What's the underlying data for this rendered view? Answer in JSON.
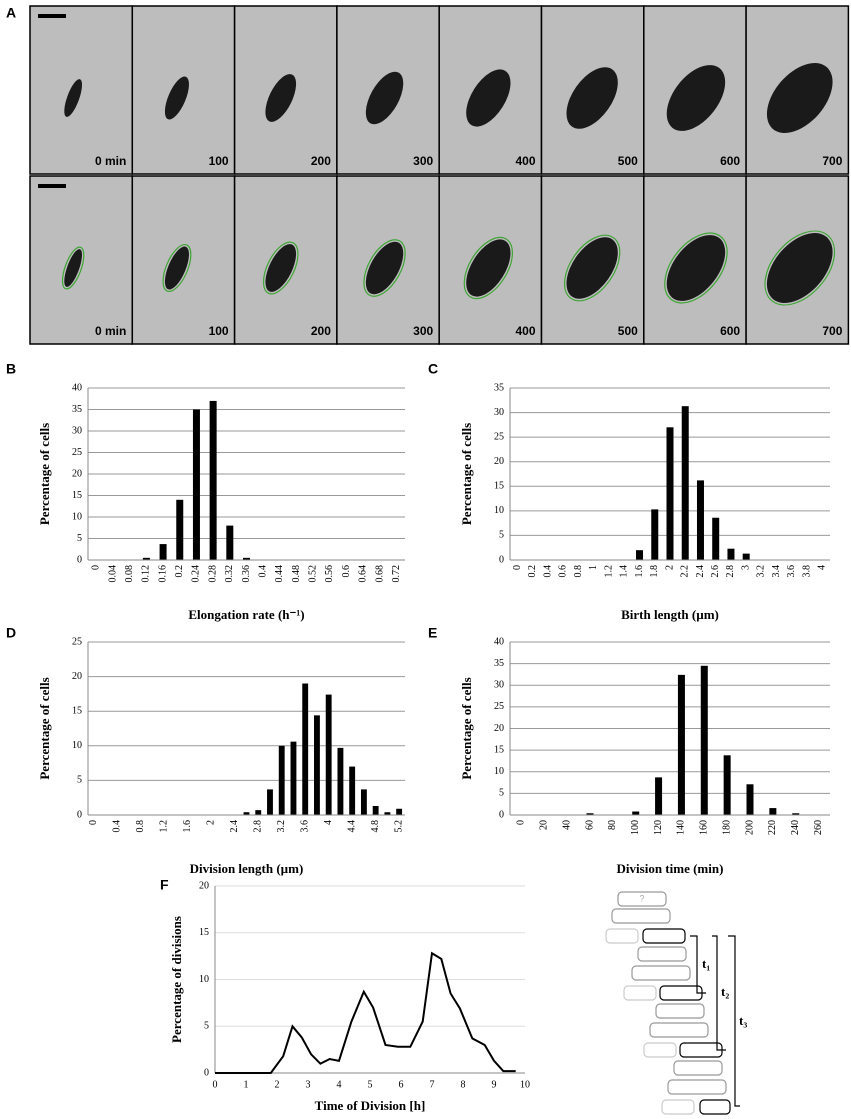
{
  "panel_a": {
    "label": "A",
    "rows": [
      {
        "time_labels": [
          "0 min",
          "100",
          "200",
          "300",
          "400",
          "500",
          "600",
          "700"
        ]
      },
      {
        "time_labels": [
          "0 min",
          "100",
          "200",
          "300",
          "400",
          "500",
          "600",
          "700"
        ]
      }
    ]
  },
  "diagram": {
    "labels": [
      "?",
      "t₁",
      "t₂",
      "t₃"
    ]
  },
  "chart_data": [
    {
      "type": "bar",
      "panel": "B",
      "x_label": "Elongation rate (h⁻¹)",
      "y_label": "Percentage of cells",
      "categories": [
        "0",
        "0.04",
        "0.08",
        "0.12",
        "0.16",
        "0.2",
        "0.24",
        "0.28",
        "0.32",
        "0.36",
        "0.4",
        "0.44",
        "0.48",
        "0.52",
        "0.56",
        "0.6",
        "0.64",
        "0.68",
        "0.72"
      ],
      "values": [
        0,
        0,
        0,
        0.5,
        3.7,
        14,
        35,
        37,
        8,
        0.5,
        0,
        0.1,
        0,
        0,
        0,
        0,
        0.1,
        0,
        0
      ],
      "color": "#000000",
      "ylim": [
        0,
        40
      ],
      "yticks": [
        0,
        5,
        10,
        15,
        20,
        25,
        30,
        35,
        40
      ],
      "grid": true
    },
    {
      "type": "bar",
      "panel": "C",
      "x_label": "Birth length (µm)",
      "y_label": "Percentage of cells",
      "categories": [
        "0",
        "0.2",
        "0.4",
        "0.6",
        "0.8",
        "1",
        "1.2",
        "1.4",
        "1.6",
        "1.8",
        "2",
        "2.2",
        "2.4",
        "2.6",
        "2.8",
        "3",
        "3.2",
        "3.4",
        "3.6",
        "3.8",
        "4"
      ],
      "values": [
        0,
        0,
        0,
        0,
        0,
        0,
        0,
        0,
        2,
        10.3,
        27,
        31.3,
        16.2,
        8.6,
        2.3,
        1.3,
        0,
        0,
        0,
        0,
        0
      ],
      "color": "#000000",
      "ylim": [
        0,
        35
      ],
      "yticks": [
        0,
        5,
        10,
        15,
        20,
        25,
        30,
        35
      ],
      "grid": true
    },
    {
      "type": "bar",
      "panel": "D",
      "x_label": "Division length (µm)",
      "y_label": "Percentage of cells",
      "categories": [
        "0",
        null,
        "0.4",
        null,
        "0.8",
        null,
        "1.2",
        null,
        "1.6",
        null,
        "2",
        null,
        "2.4",
        null,
        "2.8",
        null,
        "3.2",
        null,
        "3.6",
        null,
        "4",
        null,
        "4.4",
        null,
        "4.8",
        null,
        "5.2"
      ],
      "values": [
        0,
        0,
        0,
        0,
        0,
        0,
        0,
        0,
        0,
        0,
        0,
        0,
        0,
        0.4,
        0.7,
        3.7,
        10,
        10.6,
        19,
        14.4,
        17.4,
        9.7,
        7,
        3.7,
        1.3,
        0.4,
        0.9
      ],
      "color": "#000000",
      "ylim": [
        0,
        25
      ],
      "yticks": [
        0,
        5,
        10,
        15,
        20,
        25
      ],
      "grid": true
    },
    {
      "type": "bar",
      "panel": "E",
      "x_label": "Division time (min)",
      "y_label": "Percentage of cells",
      "categories": [
        "0",
        "20",
        "40",
        "60",
        "80",
        "100",
        "120",
        "140",
        "160",
        "180",
        "200",
        "220",
        "240",
        "260"
      ],
      "values": [
        0,
        0,
        0,
        0.4,
        0,
        0.8,
        8.7,
        32.4,
        34.5,
        13.8,
        7.1,
        1.6,
        0.4,
        0
      ],
      "color": "#000000",
      "ylim": [
        0,
        40
      ],
      "yticks": [
        0,
        5,
        10,
        15,
        20,
        25,
        30,
        35,
        40
      ],
      "grid": true
    },
    {
      "type": "line",
      "panel": "F",
      "x_label": "Time of Division [h]",
      "y_label": "Percentage of divisions",
      "x": [
        0,
        1,
        1.8,
        2.2,
        2.5,
        2.8,
        3.1,
        3.4,
        3.7,
        4.0,
        4.4,
        4.8,
        5.1,
        5.5,
        5.9,
        6.3,
        6.7,
        7.0,
        7.3,
        7.6,
        7.9,
        8.3,
        8.7,
        9.0,
        9.3,
        9.7
      ],
      "values": [
        0,
        0,
        0,
        1.8,
        5,
        3.8,
        2,
        1,
        1.5,
        1.3,
        5.5,
        8.7,
        7,
        3,
        2.8,
        2.8,
        5.5,
        12.8,
        12.2,
        8.5,
        6.9,
        3.7,
        3,
        1.3,
        0.2,
        0.2
      ],
      "color": "#000000",
      "xlim": [
        0,
        10
      ],
      "xticks": [
        0,
        1,
        2,
        3,
        4,
        5,
        6,
        7,
        8,
        9,
        10
      ],
      "ylim": [
        0,
        20
      ],
      "yticks": [
        0,
        5,
        10,
        15,
        20
      ],
      "grid": true
    }
  ]
}
